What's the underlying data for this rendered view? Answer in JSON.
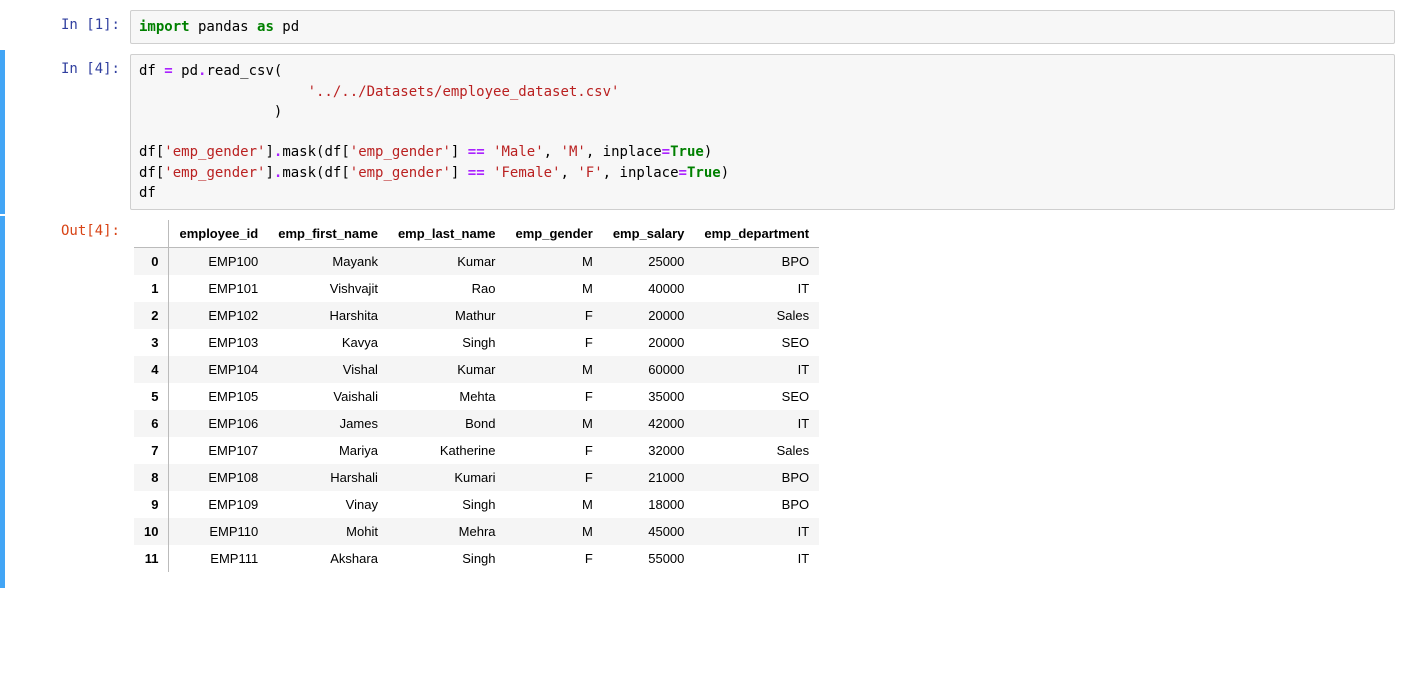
{
  "colors": {
    "keyword": "#008000",
    "string": "#BA2121",
    "operator": "#AA22FF",
    "bool": "#008000",
    "in_prompt": "#303F9F",
    "out_prompt": "#D84315",
    "cell_bg": "#f7f7f7",
    "selected_border": "#42A5F5",
    "row_stripe": "#f5f5f5"
  },
  "cells": [
    {
      "exec_count": 1,
      "in_label": "In [1]:",
      "code_tokens": [
        {
          "t": "import",
          "c": "kw"
        },
        {
          "t": " pandas ",
          "c": "nn"
        },
        {
          "t": "as",
          "c": "kw"
        },
        {
          "t": " pd",
          "c": "nn"
        }
      ]
    },
    {
      "exec_count": 4,
      "in_label": "In [4]:",
      "out_label": "Out[4]:",
      "code_tokens": [
        {
          "t": "df ",
          "c": "nn"
        },
        {
          "t": "=",
          "c": "op"
        },
        {
          "t": " pd",
          "c": "nn"
        },
        {
          "t": ".",
          "c": "op"
        },
        {
          "t": "read_csv(",
          "c": "nn"
        },
        {
          "t": "\n",
          "c": "nn"
        },
        {
          "t": "                    ",
          "c": "nn"
        },
        {
          "t": "'../../Datasets/employee_dataset.csv'",
          "c": "str"
        },
        {
          "t": "\n",
          "c": "nn"
        },
        {
          "t": "                )",
          "c": "nn"
        },
        {
          "t": "\n\n",
          "c": "nn"
        },
        {
          "t": "df[",
          "c": "nn"
        },
        {
          "t": "'emp_gender'",
          "c": "str"
        },
        {
          "t": "]",
          "c": "nn"
        },
        {
          "t": ".",
          "c": "op"
        },
        {
          "t": "mask(df[",
          "c": "nn"
        },
        {
          "t": "'emp_gender'",
          "c": "str"
        },
        {
          "t": "] ",
          "c": "nn"
        },
        {
          "t": "==",
          "c": "op"
        },
        {
          "t": " ",
          "c": "nn"
        },
        {
          "t": "'Male'",
          "c": "str"
        },
        {
          "t": ", ",
          "c": "nn"
        },
        {
          "t": "'M'",
          "c": "str"
        },
        {
          "t": ", inplace",
          "c": "nn"
        },
        {
          "t": "=",
          "c": "op"
        },
        {
          "t": "True",
          "c": "val"
        },
        {
          "t": ")\n",
          "c": "nn"
        },
        {
          "t": "df[",
          "c": "nn"
        },
        {
          "t": "'emp_gender'",
          "c": "str"
        },
        {
          "t": "]",
          "c": "nn"
        },
        {
          "t": ".",
          "c": "op"
        },
        {
          "t": "mask(df[",
          "c": "nn"
        },
        {
          "t": "'emp_gender'",
          "c": "str"
        },
        {
          "t": "] ",
          "c": "nn"
        },
        {
          "t": "==",
          "c": "op"
        },
        {
          "t": " ",
          "c": "nn"
        },
        {
          "t": "'Female'",
          "c": "str"
        },
        {
          "t": ", ",
          "c": "nn"
        },
        {
          "t": "'F'",
          "c": "str"
        },
        {
          "t": ", inplace",
          "c": "nn"
        },
        {
          "t": "=",
          "c": "op"
        },
        {
          "t": "True",
          "c": "val"
        },
        {
          "t": ")\n",
          "c": "nn"
        },
        {
          "t": "df",
          "c": "nn"
        }
      ],
      "dataframe": {
        "columns": [
          "employee_id",
          "emp_first_name",
          "emp_last_name",
          "emp_gender",
          "emp_salary",
          "emp_department"
        ],
        "index": [
          "0",
          "1",
          "2",
          "3",
          "4",
          "5",
          "6",
          "7",
          "8",
          "9",
          "10",
          "11"
        ],
        "rows": [
          [
            "EMP100",
            "Mayank",
            "Kumar",
            "M",
            "25000",
            "BPO"
          ],
          [
            "EMP101",
            "Vishvajit",
            "Rao",
            "M",
            "40000",
            "IT"
          ],
          [
            "EMP102",
            "Harshita",
            "Mathur",
            "F",
            "20000",
            "Sales"
          ],
          [
            "EMP103",
            "Kavya",
            "Singh",
            "F",
            "20000",
            "SEO"
          ],
          [
            "EMP104",
            "Vishal",
            "Kumar",
            "M",
            "60000",
            "IT"
          ],
          [
            "EMP105",
            "Vaishali",
            "Mehta",
            "F",
            "35000",
            "SEO"
          ],
          [
            "EMP106",
            "James",
            "Bond",
            "M",
            "42000",
            "IT"
          ],
          [
            "EMP107",
            "Mariya",
            "Katherine",
            "F",
            "32000",
            "Sales"
          ],
          [
            "EMP108",
            "Harshali",
            "Kumari",
            "F",
            "21000",
            "BPO"
          ],
          [
            "EMP109",
            "Vinay",
            "Singh",
            "M",
            "18000",
            "BPO"
          ],
          [
            "EMP110",
            "Mohit",
            "Mehra",
            "M",
            "45000",
            "IT"
          ],
          [
            "EMP111",
            "Akshara",
            "Singh",
            "F",
            "55000",
            "IT"
          ]
        ]
      }
    }
  ]
}
